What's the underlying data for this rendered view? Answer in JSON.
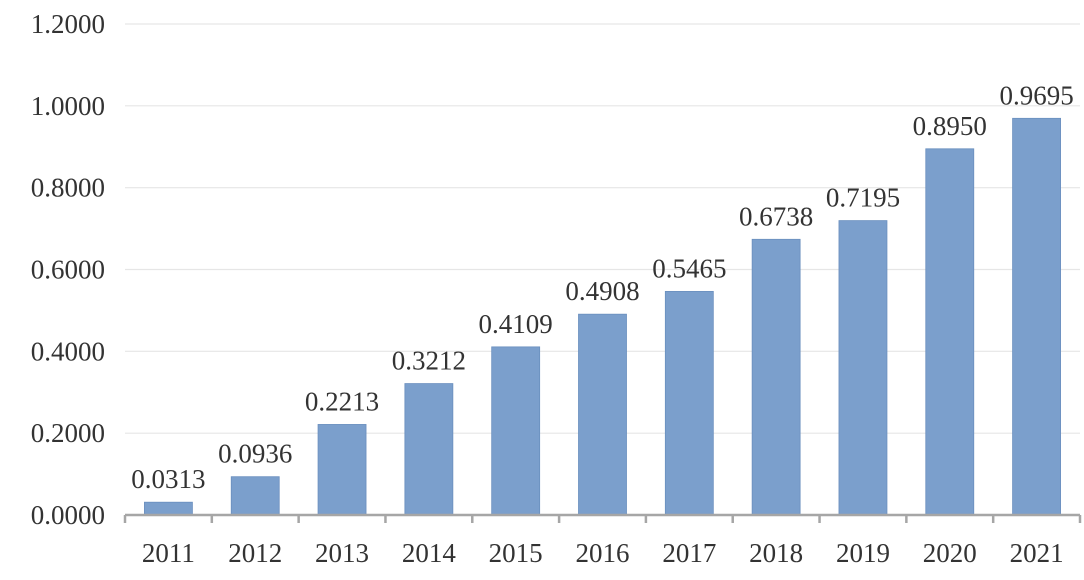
{
  "chart_data": {
    "type": "bar",
    "categories": [
      "2011",
      "2012",
      "2013",
      "2014",
      "2015",
      "2016",
      "2017",
      "2018",
      "2019",
      "2020",
      "2021"
    ],
    "values": [
      0.0313,
      0.0936,
      0.2213,
      0.3212,
      0.4109,
      0.4908,
      0.5465,
      0.6738,
      0.7195,
      0.895,
      0.9695
    ],
    "value_labels": [
      "0.0313",
      "0.0936",
      "0.2213",
      "0.3212",
      "0.4109",
      "0.4908",
      "0.5465",
      "0.6738",
      "0.7195",
      "0.8950",
      "0.9695"
    ],
    "y_ticks": [
      0,
      0.2,
      0.4,
      0.6,
      0.8,
      1.0,
      1.2
    ],
    "y_tick_labels": [
      "0.0000",
      "0.2000",
      "0.4000",
      "0.6000",
      "0.8000",
      "1.0000",
      "1.2000"
    ],
    "ylim": [
      0,
      1.2
    ],
    "title": "",
    "xlabel": "",
    "ylabel": "",
    "grid": true,
    "legend": "none",
    "colors": {
      "bar": "#7b9fcc",
      "bar_edge": "#6a8fbe",
      "grid": "#e6e6e6",
      "axis": "#a6a6a6",
      "text": "#333333"
    }
  }
}
